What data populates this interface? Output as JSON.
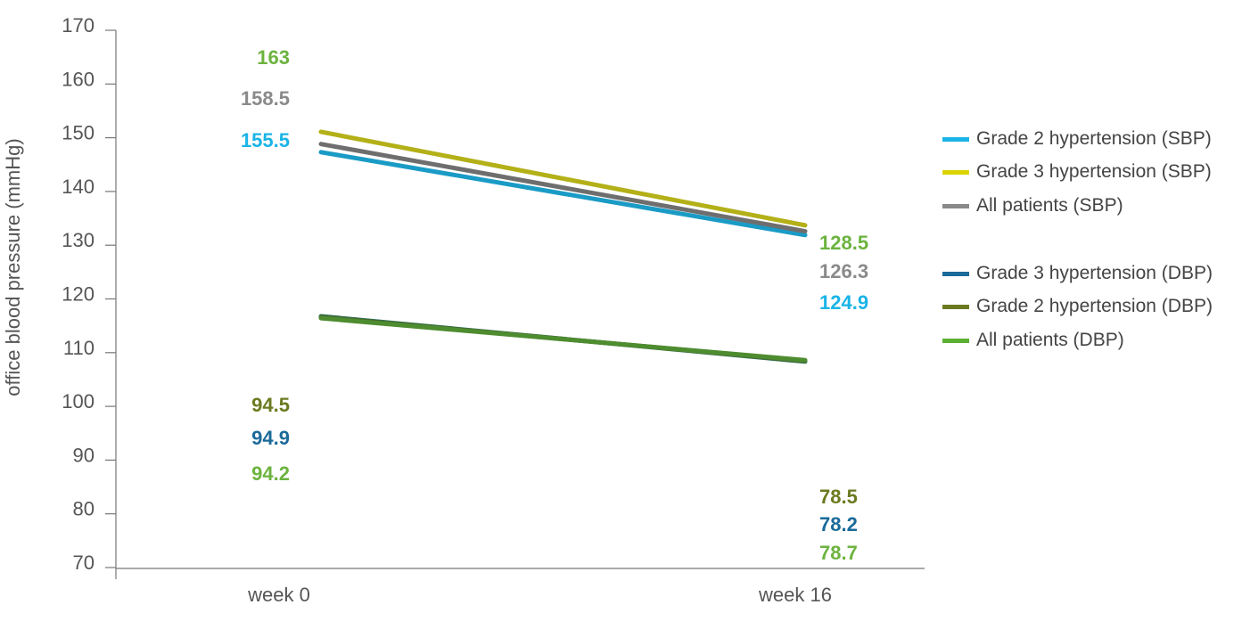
{
  "chart_data": {
    "type": "line",
    "ylabel": "office blood pressure (mmHg)",
    "categories": [
      "week 0",
      "week 16"
    ],
    "y_tick_labels": [
      "170",
      "160",
      "150",
      "140",
      "130",
      "120",
      "110",
      "100",
      "90",
      "80",
      "70"
    ],
    "grid": false,
    "legend_position": "right",
    "series": [
      {
        "name": "Grade 2 hypertension (SBP)",
        "color": "#1ab4e6",
        "line_color": "#1a9bc6",
        "label_color": "#1ab4e6",
        "values": [
          155.5,
          124.9
        ],
        "labels": [
          "155.5",
          "124.9"
        ]
      },
      {
        "name": "Grade 3 hypertension (SBP)",
        "color": "#dcd400",
        "line_color": "#b3b018",
        "label_color": "#6cb33f",
        "values": [
          163,
          128.5
        ],
        "labels": [
          "163",
          "128.5"
        ]
      },
      {
        "name": "All patients (SBP)",
        "color": "#8a8a8a",
        "line_color": "#6e6e6e",
        "label_color": "#8a8a8a",
        "values": [
          158.5,
          126.3
        ],
        "labels": [
          "158.5",
          "126.3"
        ]
      },
      {
        "name": "Grade 3 hypertension (DBP)",
        "color": "#1a6a9a",
        "line_color": "#2e6e4e",
        "label_color": "#1a6a9a",
        "values": [
          94.9,
          78.2
        ],
        "labels": [
          "94.9",
          "78.2"
        ]
      },
      {
        "name": "Grade 2 hypertension (DBP)",
        "color": "#6b7a1f",
        "line_color": "#4c6a2a",
        "label_color": "#6b7a1f",
        "values": [
          94.5,
          78.5
        ],
        "labels": [
          "94.5",
          "78.5"
        ]
      },
      {
        "name": "All patients (DBP)",
        "color": "#5cb032",
        "line_color": "#4e8c30",
        "label_color": "#6cb33f",
        "values": [
          94.2,
          78.7
        ],
        "labels": [
          "94.2",
          "78.7"
        ]
      }
    ]
  }
}
